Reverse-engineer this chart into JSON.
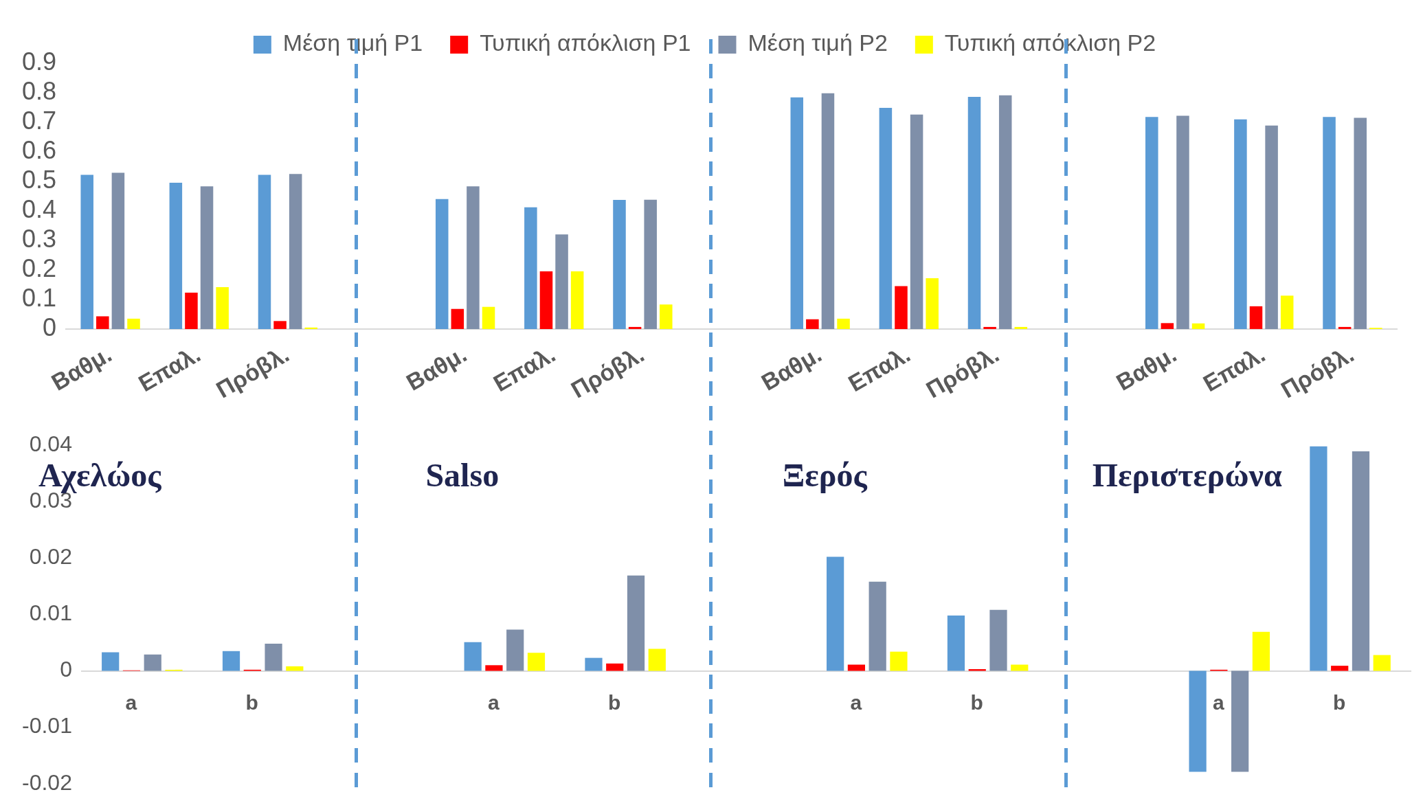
{
  "chart_data": [
    {
      "type": "bar",
      "categories": [
        "Βαθμ.",
        "Επαλ.",
        "Πρόβλ.",
        null,
        "Βαθμ.",
        "Επαλ.",
        "Πρόβλ.",
        null,
        "Βαθμ.",
        "Επαλ.",
        "Πρόβλ.",
        null,
        "Βαθμ.",
        "Επαλ.",
        "Πρόβλ."
      ],
      "series": [
        {
          "name": "Μέση τιμή P1",
          "color": "#5b9bd5",
          "values": [
            0.522,
            0.495,
            0.522,
            null,
            0.44,
            0.412,
            0.437,
            null,
            0.784,
            0.749,
            0.786,
            null,
            0.718,
            0.71,
            0.718
          ]
        },
        {
          "name": "Τυπική απόκλιση P1",
          "color": "#ff0000",
          "values": [
            0.043,
            0.123,
            0.027,
            null,
            0.068,
            0.195,
            0.007,
            null,
            0.033,
            0.145,
            0.007,
            null,
            0.02,
            0.077,
            0.007
          ]
        },
        {
          "name": "Μέση τιμή P2",
          "color": "#7f8fa9",
          "values": [
            0.529,
            0.483,
            0.525,
            null,
            0.483,
            0.32,
            0.438,
            null,
            0.798,
            0.726,
            0.791,
            null,
            0.722,
            0.689,
            0.715
          ]
        },
        {
          "name": "Τυπική απόκλιση P2",
          "color": "#ffff00",
          "values": [
            0.035,
            0.142,
            0.005,
            null,
            0.075,
            0.195,
            0.083,
            null,
            0.035,
            0.172,
            0.007,
            null,
            0.019,
            0.113,
            0.004
          ]
        }
      ],
      "ylim": [
        0,
        0.9
      ],
      "yticks": [
        0,
        0.1,
        0.2,
        0.3,
        0.4,
        0.5,
        0.6,
        0.7,
        0.8,
        0.9
      ],
      "grid": false,
      "legend": "top"
    },
    {
      "type": "bar",
      "categories": [
        "a",
        "b",
        null,
        "a",
        "b",
        null,
        "a",
        "b",
        null,
        "a",
        "b"
      ],
      "series": [
        {
          "color": "#5b9bd5",
          "values": [
            0.0033,
            0.0035,
            null,
            0.0051,
            0.0023,
            null,
            0.0202,
            0.0098,
            null,
            -0.0179,
            0.0398
          ]
        },
        {
          "color": "#ff0000",
          "values": [
            0.0001,
            0.0002,
            null,
            0.001,
            0.0013,
            null,
            0.0011,
            0.0003,
            null,
            0.0002,
            0.0009
          ]
        },
        {
          "color": "#7f8fa9",
          "values": [
            0.0029,
            0.0048,
            null,
            0.0073,
            0.0169,
            null,
            0.0158,
            0.0108,
            null,
            -0.0179,
            0.0389
          ]
        },
        {
          "color": "#ffff00",
          "values": [
            0.0002,
            0.0008,
            null,
            0.0032,
            0.0039,
            null,
            0.0034,
            0.0011,
            null,
            0.0069,
            0.0028
          ]
        }
      ],
      "ylim": [
        -0.02,
        0.04
      ],
      "yticks": [
        -0.02,
        -0.01,
        0,
        0.01,
        0.02,
        0.03,
        0.04
      ],
      "grid": false,
      "legend": false,
      "annotations": [
        "Αχελώος",
        "Salso",
        "Ξερός",
        "Περιστερώνα"
      ]
    }
  ]
}
